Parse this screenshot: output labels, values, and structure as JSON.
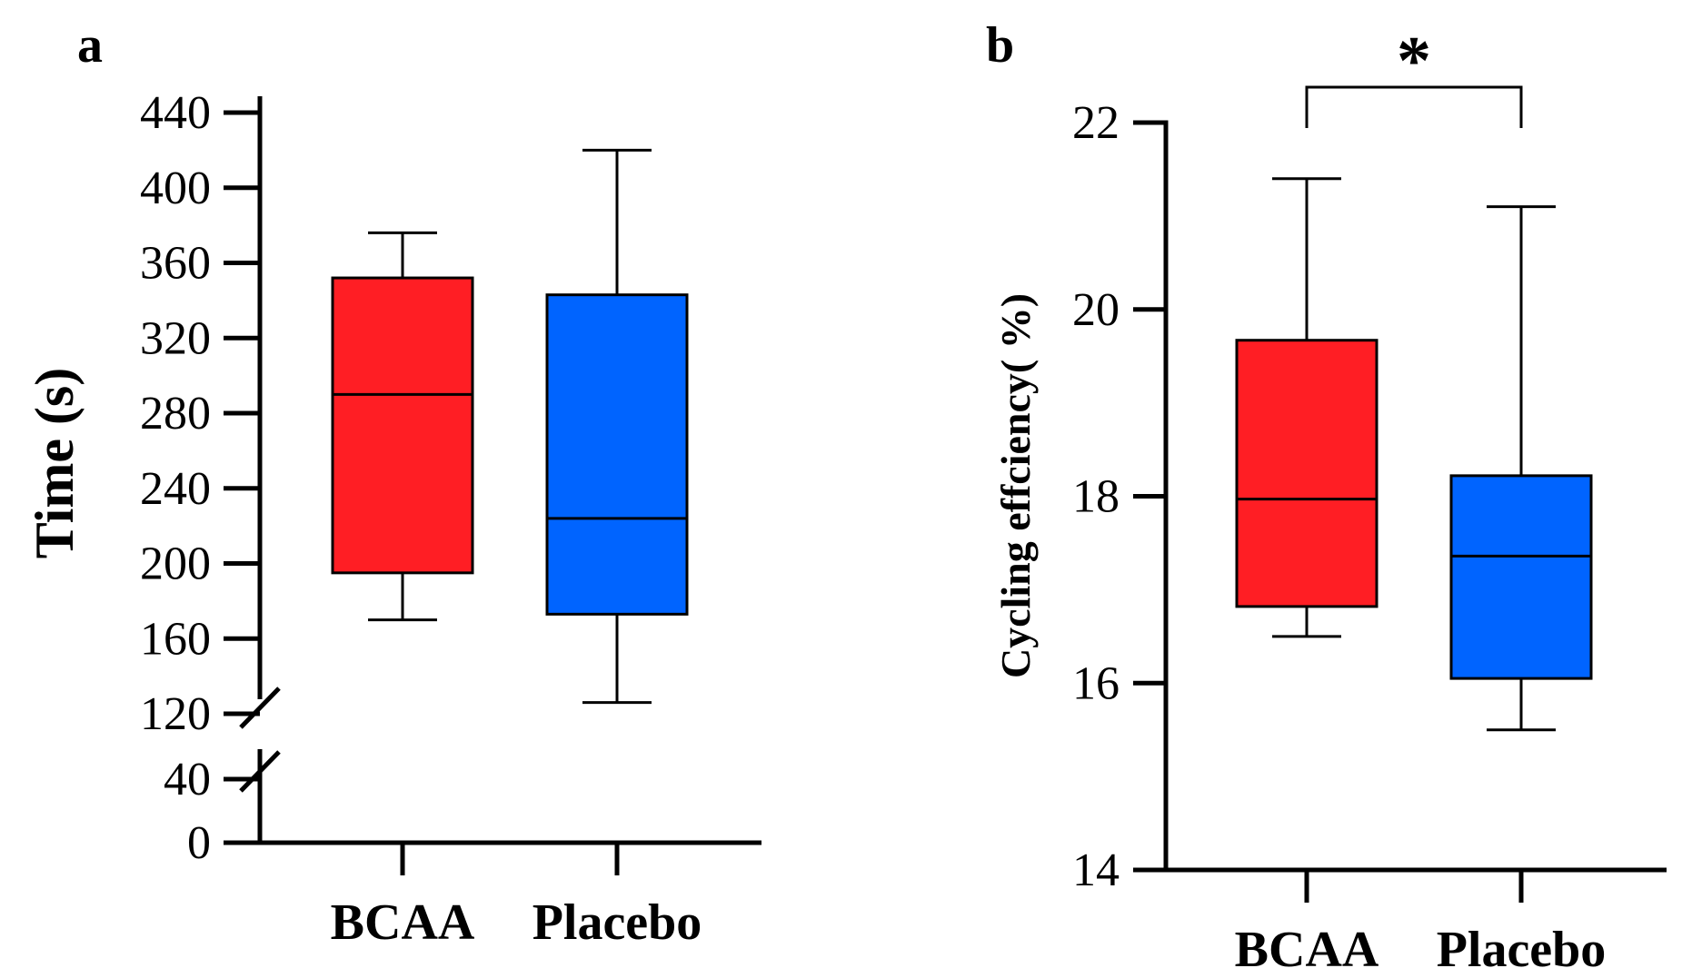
{
  "chart_data": [
    {
      "panel": "a",
      "type": "box",
      "ylabel": "Time (s)",
      "categories": [
        "BCAA",
        "Placebo"
      ],
      "colors": [
        "#ff1e24",
        "#0064ff"
      ],
      "axis_break": [
        40,
        120
      ],
      "yticks": [
        0,
        40,
        120,
        160,
        200,
        240,
        280,
        320,
        360,
        400,
        440
      ],
      "ylim": [
        0,
        440
      ],
      "boxes": [
        {
          "name": "BCAA",
          "min": 170,
          "q1": 195,
          "median": 290,
          "q3": 352,
          "max": 376
        },
        {
          "name": "Placebo",
          "min": 126,
          "q1": 173,
          "median": 224,
          "q3": 343,
          "max": 420
        }
      ]
    },
    {
      "panel": "b",
      "type": "box",
      "ylabel": "Cycling effciency( %)",
      "categories": [
        "BCAA",
        "Placebo"
      ],
      "colors": [
        "#ff1e24",
        "#0064ff"
      ],
      "yticks": [
        14,
        16,
        18,
        20,
        22
      ],
      "ylim": [
        14,
        22
      ],
      "boxes": [
        {
          "name": "BCAA",
          "min": 16.5,
          "q1": 16.82,
          "median": 17.97,
          "q3": 19.67,
          "max": 21.4
        },
        {
          "name": "Placebo",
          "min": 15.5,
          "q1": 16.05,
          "median": 17.36,
          "q3": 18.22,
          "max": 21.1
        }
      ],
      "significance": {
        "text": "*",
        "between": [
          "BCAA",
          "Placebo"
        ]
      }
    }
  ]
}
